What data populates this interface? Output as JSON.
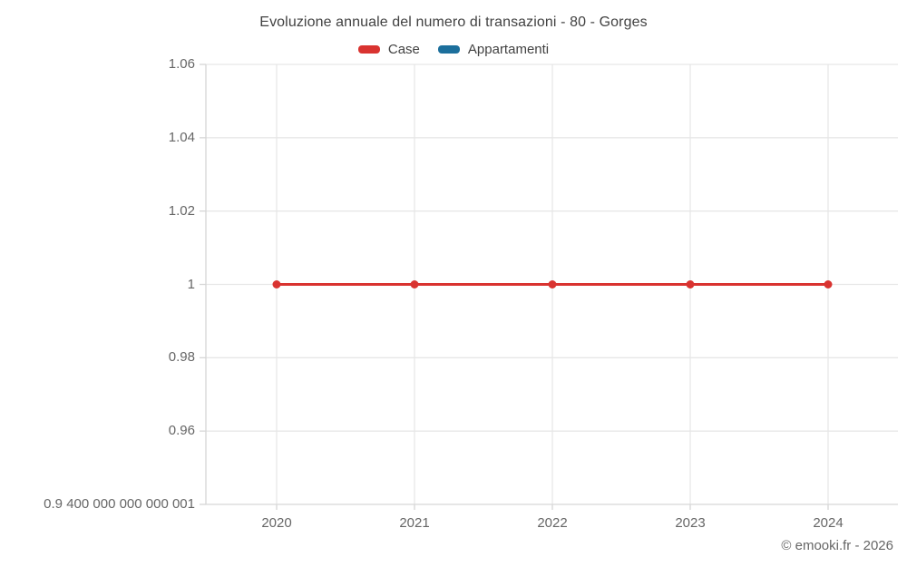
{
  "title": "Evoluzione annuale del numero di transazioni - 80 - Gorges",
  "attribution": "© emooki.fr - 2026",
  "colors": {
    "series_case": "#d93330",
    "series_appartamenti": "#1c6f9c",
    "gridline": "#e7e7e7",
    "axis_line": "#d6d6d6",
    "title_text": "#424242",
    "tick_text": "#666666"
  },
  "legend": [
    {
      "label": "Case",
      "color": "#d93330"
    },
    {
      "label": "Appartamenti",
      "color": "#1c6f9c"
    }
  ],
  "chart_data": {
    "type": "line",
    "title": "Evoluzione annuale del numero di transazioni - 80 - Gorges",
    "xlabel": "",
    "ylabel": "",
    "x": [
      "2020",
      "2021",
      "2022",
      "2023",
      "2024"
    ],
    "series": [
      {
        "name": "Case",
        "color": "#d93330",
        "values": [
          1,
          1,
          1,
          1,
          1
        ],
        "marker": "circle"
      },
      {
        "name": "Appartamenti",
        "color": "#1c6f9c",
        "values": []
      }
    ],
    "ylim": [
      0.94,
      1.06
    ],
    "ytick_values": [
      1.06,
      1.04,
      1.02,
      1,
      0.98,
      0.96,
      0.94
    ],
    "ytick_labels": [
      "1.06",
      "1.04",
      "1.02",
      "1",
      "0.98",
      "0.96",
      "0.9 400 000 000 000 001"
    ],
    "grid": true,
    "legend_position": "top"
  }
}
